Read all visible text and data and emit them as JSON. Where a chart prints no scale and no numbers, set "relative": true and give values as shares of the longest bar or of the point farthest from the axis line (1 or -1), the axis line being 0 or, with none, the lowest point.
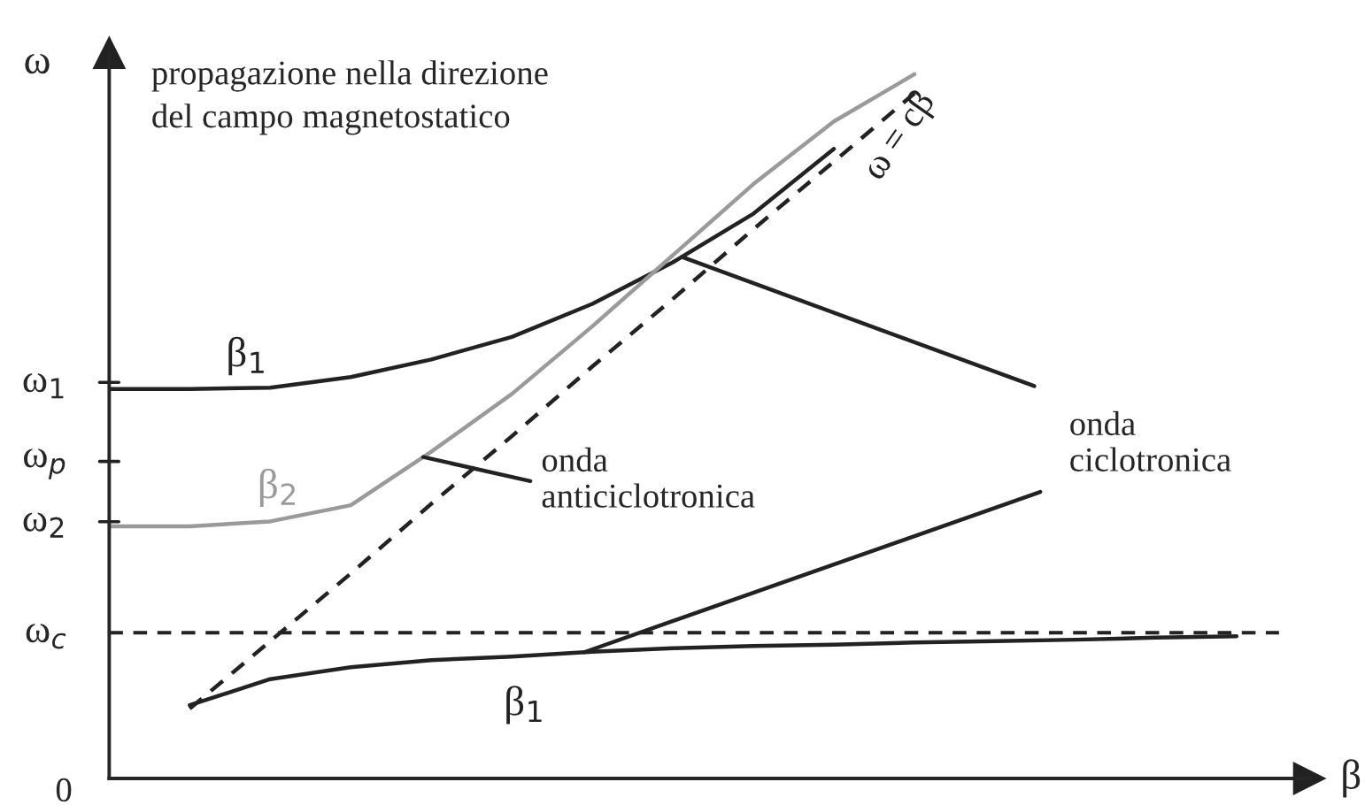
{
  "chart_data": {
    "type": "line",
    "relative": true,
    "title": "propagazione nella direzione\ndel campo magnetostatico",
    "xlabel": "β",
    "ylabel": "ω",
    "categories": [
      null,
      null,
      null,
      null,
      null,
      null,
      null,
      null,
      null,
      null,
      null,
      null,
      null,
      null,
      null
    ],
    "marker": "none",
    "series": [
      {
        "name": "β$_{1}$",
        "color": "#222222",
        "line_style": "solid",
        "values": [
          0.553,
          0.553,
          0.555,
          0.57,
          0.595,
          0.627,
          0.674,
          0.733,
          0.802,
          0.894,
          null,
          null,
          null,
          null,
          null
        ]
      },
      {
        "name": "β$_{2}$",
        "color": "#9a9a9a",
        "line_style": "solid",
        "values": [
          0.358,
          0.358,
          0.365,
          0.388,
          0.464,
          0.546,
          0.642,
          0.743,
          0.844,
          0.933,
          1.0,
          null,
          null,
          null,
          null
        ]
      },
      {
        "name": "β$_{1}$",
        "color": "#222222",
        "line_style": "solid",
        "values": [
          null,
          0.104,
          0.141,
          0.158,
          0.168,
          0.173,
          0.18,
          0.185,
          0.188,
          0.19,
          0.193,
          0.195,
          0.197,
          0.2,
          0.202
        ]
      },
      {
        "name": "ω = cβ",
        "color": "#222222",
        "line_style": "dashed",
        "values": [
          null,
          0.099,
          0.195,
          0.291,
          0.39,
          0.486,
          0.585,
          0.681,
          0.78,
          0.876,
          0.973,
          null,
          null,
          null,
          null
        ]
      }
    ],
    "ref_lines": [
      {
        "axis": "y",
        "value": 0.207,
        "label": "ω$_{c}$",
        "color": "#222222",
        "line_style": "dashed"
      }
    ],
    "annotations": [
      "ω$_{1}$",
      "ω$_{p}$",
      "ω$_{2}$",
      "0",
      "onda\nciclotronica",
      "onda\nanticiclotronica"
    ]
  }
}
